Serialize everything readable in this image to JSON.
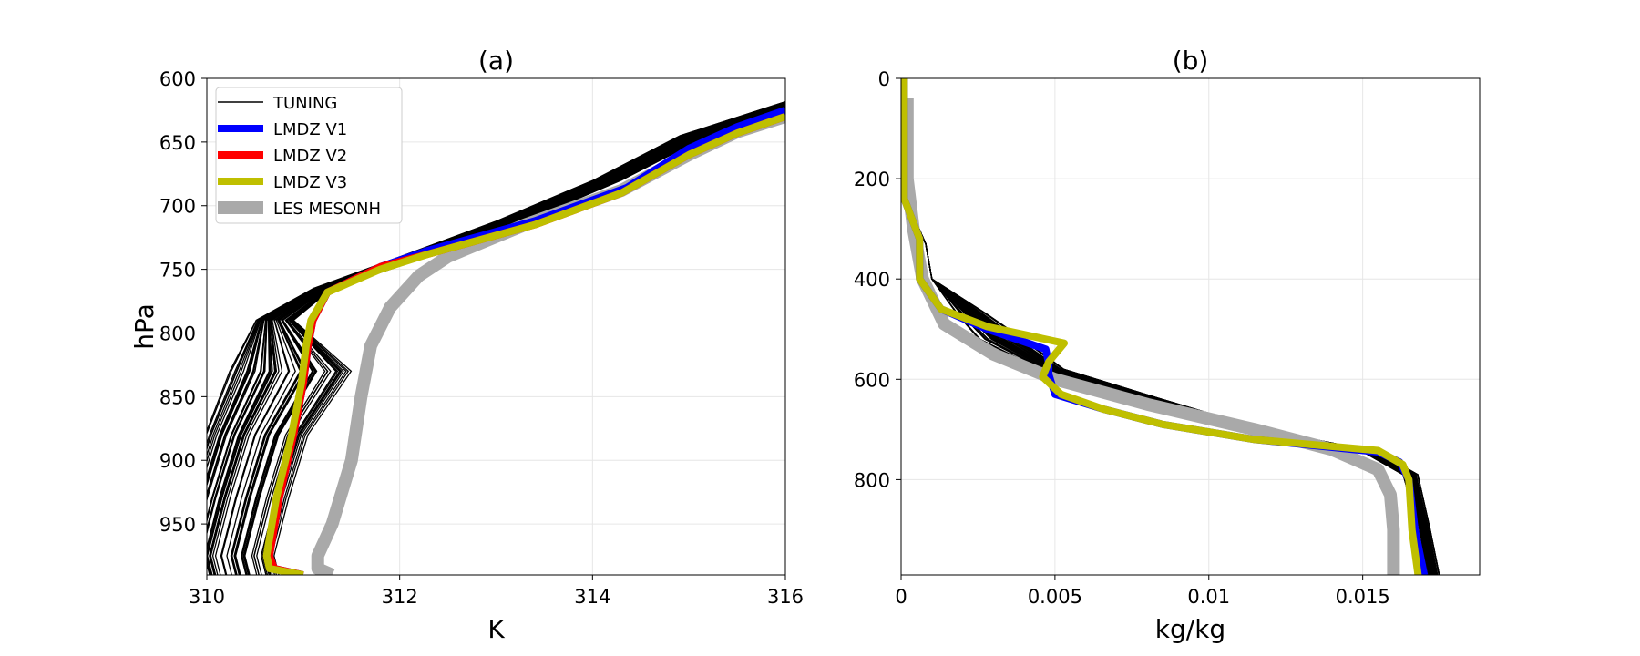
{
  "chart_data": [
    {
      "type": "line",
      "title": "(a)",
      "xlabel": "K",
      "ylabel": "hPa",
      "xlim": [
        310,
        316
      ],
      "ylim": [
        990,
        600
      ],
      "y_inverted": true,
      "grid": true,
      "legend_position": "upper-left",
      "xticks": [
        310,
        312,
        314,
        316
      ],
      "xtick_labels": [
        "310",
        "312",
        "314",
        "316"
      ],
      "yticks": [
        600,
        650,
        700,
        750,
        800,
        850,
        900,
        950
      ],
      "ytick_labels": [
        "600",
        "650",
        "700",
        "750",
        "800",
        "850",
        "900",
        "950"
      ],
      "legend": [
        {
          "label": "TUNING",
          "color": "#000000",
          "width": 1.5
        },
        {
          "label": "LMDZ V1",
          "color": "#0000ff",
          "width": 8
        },
        {
          "label": "LMDZ V2",
          "color": "#ff0000",
          "width": 8
        },
        {
          "label": "LMDZ V3",
          "color": "#bfbf00",
          "width": 8
        },
        {
          "label": "LES MESONH",
          "color": "#a9a9a9",
          "width": 14
        }
      ],
      "series": [
        {
          "name": "LES MESONH",
          "color": "#a9a9a9",
          "width": 14,
          "points": [
            [
              311.3,
              990
            ],
            [
              311.15,
              985
            ],
            [
              311.15,
              975
            ],
            [
              311.3,
              950
            ],
            [
              311.5,
              900
            ],
            [
              311.6,
              850
            ],
            [
              311.7,
              810
            ],
            [
              311.9,
              780
            ],
            [
              312.2,
              755
            ],
            [
              312.5,
              740
            ],
            [
              313.3,
              715
            ],
            [
              314.3,
              688
            ],
            [
              315.0,
              660
            ],
            [
              315.5,
              642
            ],
            [
              316.0,
              630
            ]
          ]
        },
        {
          "name": "LMDZ V1",
          "color": "#0000ff",
          "width": 8,
          "points": [
            [
              311.0,
              990
            ],
            [
              310.7,
              985
            ],
            [
              310.65,
              975
            ],
            [
              310.75,
              930
            ],
            [
              310.9,
              880
            ],
            [
              311.0,
              840
            ],
            [
              311.05,
              810
            ],
            [
              311.1,
              790
            ],
            [
              311.25,
              768
            ],
            [
              311.8,
              748
            ],
            [
              312.3,
              735
            ],
            [
              313.4,
              712
            ],
            [
              314.35,
              686
            ],
            [
              315.0,
              655
            ],
            [
              315.5,
              638
            ],
            [
              316.0,
              625
            ]
          ]
        },
        {
          "name": "LMDZ V2",
          "color": "#ff0000",
          "width": 8,
          "points": [
            [
              311.0,
              990
            ],
            [
              310.7,
              985
            ],
            [
              310.65,
              975
            ],
            [
              310.75,
              930
            ],
            [
              310.9,
              880
            ],
            [
              311.0,
              840
            ],
            [
              311.05,
              810
            ],
            [
              311.1,
              790
            ],
            [
              311.25,
              768
            ],
            [
              311.8,
              748
            ],
            [
              312.3,
              738
            ],
            [
              313.4,
              715
            ],
            [
              314.3,
              690
            ],
            [
              315.0,
              660
            ],
            [
              315.5,
              643
            ],
            [
              316.0,
              630
            ]
          ]
        },
        {
          "name": "LMDZ V3",
          "color": "#bfbf00",
          "width": 8,
          "points": [
            [
              311.0,
              990
            ],
            [
              310.65,
              985
            ],
            [
              310.62,
              975
            ],
            [
              310.72,
              930
            ],
            [
              310.88,
              880
            ],
            [
              310.98,
              840
            ],
            [
              311.03,
              810
            ],
            [
              311.08,
              790
            ],
            [
              311.25,
              768
            ],
            [
              311.8,
              750
            ],
            [
              312.3,
              738
            ],
            [
              313.4,
              715
            ],
            [
              314.3,
              690
            ],
            [
              315.0,
              660
            ],
            [
              315.5,
              643
            ],
            [
              316.0,
              630
            ]
          ]
        }
      ]
    },
    {
      "type": "line",
      "title": "(b)",
      "xlabel": "kg/kg",
      "ylabel": "",
      "xlim": [
        0,
        0.0188
      ],
      "ylim": [
        990,
        0
      ],
      "y_inverted": true,
      "grid": true,
      "xticks": [
        0,
        0.005,
        0.01,
        0.015
      ],
      "xtick_labels": [
        "0",
        "0.005",
        "0.01",
        "0.015"
      ],
      "yticks": [
        0,
        200,
        400,
        600,
        800
      ],
      "ytick_labels": [
        "0",
        "200",
        "400",
        "600",
        "800"
      ],
      "series": [
        {
          "name": "LES MESONH",
          "color": "#a9a9a9",
          "width": 14,
          "points": [
            [
              0.0002,
              40
            ],
            [
              0.0002,
              200
            ],
            [
              0.0004,
              300
            ],
            [
              0.0007,
              400
            ],
            [
              0.0014,
              490
            ],
            [
              0.003,
              550
            ],
            [
              0.005,
              600
            ],
            [
              0.008,
              650
            ],
            [
              0.0115,
              700
            ],
            [
              0.014,
              740
            ],
            [
              0.0155,
              780
            ],
            [
              0.0159,
              830
            ],
            [
              0.016,
              900
            ],
            [
              0.016,
              990
            ]
          ]
        },
        {
          "name": "LMDZ V1",
          "color": "#0000ff",
          "width": 8,
          "points": [
            [
              0.0001,
              0
            ],
            [
              0.0001,
              200
            ],
            [
              0.0001,
              240
            ],
            [
              0.0006,
              320
            ],
            [
              0.0006,
              400
            ],
            [
              0.0013,
              460
            ],
            [
              0.0028,
              500
            ],
            [
              0.0047,
              540
            ],
            [
              0.0048,
              570
            ],
            [
              0.0048,
              590
            ],
            [
              0.005,
              630
            ],
            [
              0.0066,
              660
            ],
            [
              0.0085,
              690
            ],
            [
              0.0115,
              720
            ],
            [
              0.0155,
              745
            ],
            [
              0.0162,
              765
            ],
            [
              0.0165,
              800
            ],
            [
              0.0167,
              900
            ],
            [
              0.017,
              990
            ]
          ]
        },
        {
          "name": "LMDZ V3",
          "color": "#bfbf00",
          "width": 8,
          "points": [
            [
              0.0001,
              0
            ],
            [
              0.0001,
              200
            ],
            [
              0.0001,
              240
            ],
            [
              0.0006,
              320
            ],
            [
              0.0006,
              400
            ],
            [
              0.0013,
              460
            ],
            [
              0.0028,
              495
            ],
            [
              0.0053,
              528
            ],
            [
              0.0048,
              565
            ],
            [
              0.0046,
              595
            ],
            [
              0.0052,
              630
            ],
            [
              0.0066,
              660
            ],
            [
              0.0085,
              690
            ],
            [
              0.0115,
              720
            ],
            [
              0.0155,
              742
            ],
            [
              0.0163,
              770
            ],
            [
              0.0165,
              800
            ],
            [
              0.0166,
              900
            ],
            [
              0.0168,
              990
            ]
          ]
        }
      ]
    }
  ]
}
